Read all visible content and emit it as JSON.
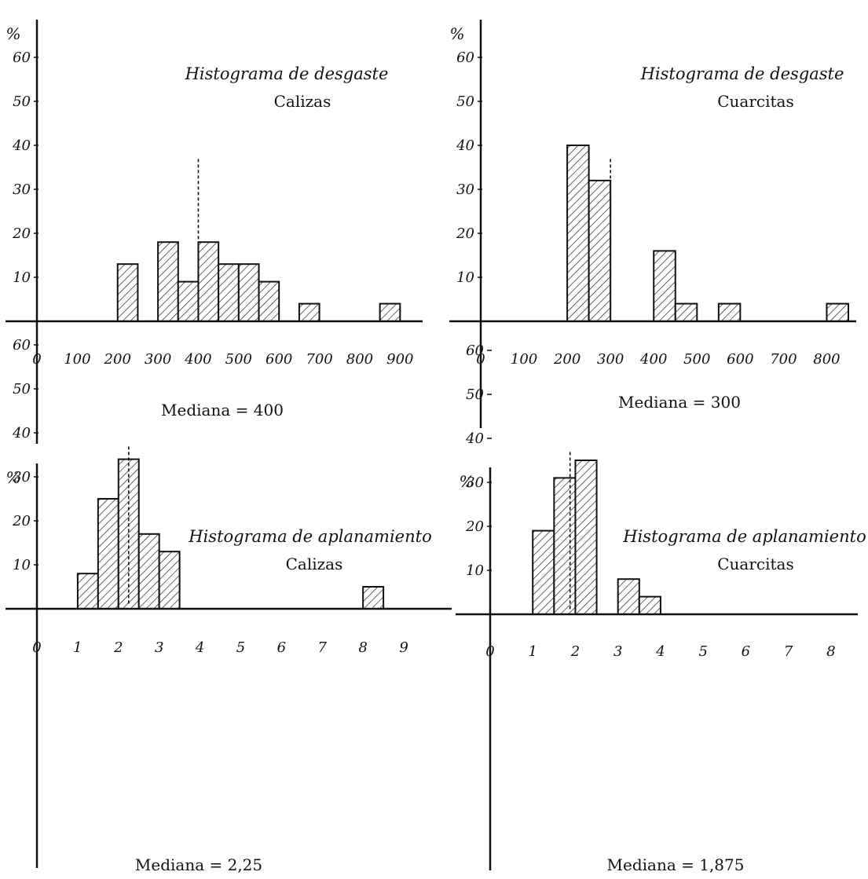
{
  "chart_data": [
    {
      "type": "bar",
      "title": "Histograma de desgaste",
      "subtitle": "Calizas",
      "ylabel": "%",
      "y_ticks": [
        "10",
        "20",
        "30",
        "40",
        "50",
        "60"
      ],
      "x_ticks": [
        "0",
        "100",
        "200",
        "300",
        "400",
        "500",
        "600",
        "700",
        "800",
        "900"
      ],
      "x": [
        200,
        300,
        350,
        400,
        450,
        500,
        550,
        650,
        850
      ],
      "bin_width": 50,
      "values": [
        13,
        18,
        9,
        18,
        13,
        13,
        9,
        4,
        4
      ],
      "median_value": 400,
      "median_label": "Mediana = 400",
      "xlim": [
        0,
        950
      ],
      "ylim": [
        0,
        65
      ]
    },
    {
      "type": "bar",
      "title": "Histograma de desgaste",
      "subtitle": "Cuarcitas",
      "ylabel": "%",
      "y_ticks": [
        "10",
        "20",
        "30",
        "40",
        "50",
        "60"
      ],
      "x_ticks": [
        "0",
        "100",
        "200",
        "300",
        "400",
        "500",
        "600",
        "700",
        "800"
      ],
      "x": [
        200,
        250,
        400,
        450,
        550,
        800
      ],
      "bin_width": 50,
      "values": [
        40,
        32,
        16,
        4,
        4,
        4
      ],
      "median_value": 300,
      "median_label": "Mediana = 300",
      "xlim": [
        0,
        850
      ],
      "ylim": [
        0,
        65
      ]
    },
    {
      "type": "bar",
      "title": "Histograma de aplanamiento",
      "subtitle": "Calizas",
      "ylabel": "%",
      "y_ticks": [
        "10",
        "20",
        "30",
        "40",
        "50",
        "60"
      ],
      "x_ticks": [
        "0",
        "1",
        "2",
        "3",
        "4",
        "5",
        "6",
        "7",
        "8",
        "9"
      ],
      "x": [
        1,
        1.5,
        2,
        2.5,
        3,
        8
      ],
      "bin_width": 0.5,
      "values": [
        8,
        25,
        34,
        17,
        13,
        5
      ],
      "median_value": 2.25,
      "median_label": "Mediana = 2,25",
      "xlim": [
        0,
        9.5
      ],
      "ylim": [
        0,
        65
      ]
    },
    {
      "type": "bar",
      "title": "Histograma de aplanamiento",
      "subtitle": "Cuarcitas",
      "ylabel": "%",
      "y_ticks": [
        "10",
        "20",
        "30",
        "40",
        "50",
        "60"
      ],
      "x_ticks": [
        "0",
        "1",
        "2",
        "3",
        "4",
        "5",
        "6",
        "7",
        "8"
      ],
      "x": [
        1,
        1.5,
        2,
        3,
        3.5
      ],
      "bin_width": 0.5,
      "values": [
        19,
        31,
        35,
        8,
        4
      ],
      "median_value": 1.875,
      "median_label": "Mediana = 1,875",
      "xlim": [
        0,
        8.5
      ],
      "ylim": [
        0,
        65
      ]
    }
  ]
}
